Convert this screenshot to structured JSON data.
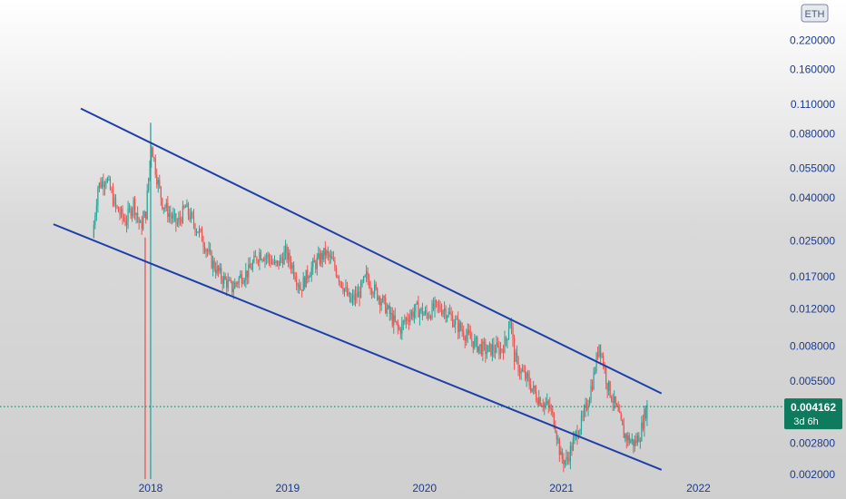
{
  "chart_data": {
    "type": "candlestick",
    "currency_label": "ETH",
    "y_scale": "log",
    "ylim": [
      0.0019,
      0.34
    ],
    "y_ticks": [
      {
        "value": 0.22,
        "label": "0.220000"
      },
      {
        "value": 0.16,
        "label": "0.160000"
      },
      {
        "value": 0.11,
        "label": "0.110000"
      },
      {
        "value": 0.08,
        "label": "0.080000"
      },
      {
        "value": 0.055,
        "label": "0.055000"
      },
      {
        "value": 0.04,
        "label": "0.040000"
      },
      {
        "value": 0.025,
        "label": "0.025000"
      },
      {
        "value": 0.017,
        "label": "0.017000"
      },
      {
        "value": 0.012,
        "label": "0.012000"
      },
      {
        "value": 0.008,
        "label": "0.008000"
      },
      {
        "value": 0.0055,
        "label": "0.005500"
      },
      {
        "value": 0.0028,
        "label": "0.002800"
      },
      {
        "value": 0.002,
        "label": "0.002000"
      }
    ],
    "x_ticks": [
      {
        "value": 2018,
        "label": "2018"
      },
      {
        "value": 2019,
        "label": "2019"
      },
      {
        "value": 2020,
        "label": "2020"
      },
      {
        "value": 2021,
        "label": "2021"
      },
      {
        "value": 2022,
        "label": "2022"
      }
    ],
    "xlim": [
      2016.9,
      2022.6
    ],
    "price_path": [
      [
        2017.58,
        0.026
      ],
      [
        2017.62,
        0.045
      ],
      [
        2017.68,
        0.05
      ],
      [
        2017.75,
        0.036
      ],
      [
        2017.82,
        0.031
      ],
      [
        2017.88,
        0.038
      ],
      [
        2017.93,
        0.029
      ],
      [
        2017.97,
        0.034
      ],
      [
        2018.01,
        0.072
      ],
      [
        2018.05,
        0.05
      ],
      [
        2018.09,
        0.038
      ],
      [
        2018.15,
        0.033
      ],
      [
        2018.2,
        0.03
      ],
      [
        2018.26,
        0.036
      ],
      [
        2018.3,
        0.032
      ],
      [
        2018.38,
        0.026
      ],
      [
        2018.45,
        0.02
      ],
      [
        2018.52,
        0.017
      ],
      [
        2018.6,
        0.015
      ],
      [
        2018.66,
        0.017
      ],
      [
        2018.72,
        0.018
      ],
      [
        2018.8,
        0.022
      ],
      [
        2018.86,
        0.021
      ],
      [
        2018.92,
        0.019
      ],
      [
        2018.99,
        0.022
      ],
      [
        2019.04,
        0.019
      ],
      [
        2019.1,
        0.015
      ],
      [
        2019.16,
        0.018
      ],
      [
        2019.22,
        0.02
      ],
      [
        2019.28,
        0.022
      ],
      [
        2019.33,
        0.02
      ],
      [
        2019.4,
        0.016
      ],
      [
        2019.46,
        0.013
      ],
      [
        2019.52,
        0.014
      ],
      [
        2019.58,
        0.017
      ],
      [
        2019.63,
        0.015
      ],
      [
        2019.7,
        0.013
      ],
      [
        2019.76,
        0.011
      ],
      [
        2019.82,
        0.0095
      ],
      [
        2019.88,
        0.011
      ],
      [
        2019.95,
        0.012
      ],
      [
        2020.02,
        0.0112
      ],
      [
        2020.08,
        0.0122
      ],
      [
        2020.15,
        0.012
      ],
      [
        2020.22,
        0.0105
      ],
      [
        2020.28,
        0.0095
      ],
      [
        2020.35,
        0.0085
      ],
      [
        2020.4,
        0.008
      ],
      [
        2020.46,
        0.0076
      ],
      [
        2020.5,
        0.0078
      ],
      [
        2020.56,
        0.0077
      ],
      [
        2020.6,
        0.0085
      ],
      [
        2020.63,
        0.011
      ],
      [
        2020.66,
        0.0072
      ],
      [
        2020.7,
        0.0062
      ],
      [
        2020.76,
        0.0055
      ],
      [
        2020.82,
        0.0047
      ],
      [
        2020.88,
        0.0043
      ],
      [
        2020.92,
        0.0041
      ],
      [
        2020.96,
        0.0034
      ],
      [
        2021.0,
        0.0024
      ],
      [
        2021.04,
        0.0023
      ],
      [
        2021.08,
        0.0027
      ],
      [
        2021.12,
        0.0032
      ],
      [
        2021.16,
        0.0036
      ],
      [
        2021.2,
        0.0045
      ],
      [
        2021.24,
        0.0058
      ],
      [
        2021.28,
        0.0083
      ],
      [
        2021.3,
        0.0072
      ],
      [
        2021.34,
        0.0053
      ],
      [
        2021.38,
        0.0045
      ],
      [
        2021.42,
        0.0038
      ],
      [
        2021.46,
        0.0031
      ],
      [
        2021.5,
        0.0029
      ],
      [
        2021.54,
        0.0028
      ],
      [
        2021.58,
        0.0031
      ],
      [
        2021.61,
        0.0038
      ],
      [
        2021.63,
        0.004162
      ]
    ],
    "spikes": [
      {
        "x": 2017.96,
        "low": 0.0019,
        "high": 0.026,
        "color": "red"
      },
      {
        "x": 2018.0,
        "low": 0.0019,
        "high": 0.09,
        "color": "green"
      }
    ],
    "trendlines": [
      {
        "name": "channel-upper",
        "points": [
          [
            2017.49,
            0.105
          ],
          [
            2021.73,
            0.0048
          ]
        ]
      },
      {
        "name": "channel-lower",
        "points": [
          [
            2017.29,
            0.03
          ],
          [
            2021.73,
            0.0021
          ]
        ]
      }
    ],
    "last_price": {
      "value": 0.004162,
      "label": "0.004162",
      "timer": "3d 6h"
    },
    "colors": {
      "up": "#26a69a",
      "down": "#ef5350",
      "trendline": "#1f3fa8",
      "axis_text": "#1c3c8c",
      "price_badge": "#0e7a5e"
    }
  }
}
